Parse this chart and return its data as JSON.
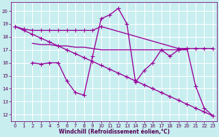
{
  "xlabel": "Windchill (Refroidissement éolien,°C)",
  "background_color": "#c8eef0",
  "grid_color": "#ffffff",
  "line_color": "#990099",
  "xlim": [
    -0.5,
    23.5
  ],
  "ylim": [
    11.5,
    20.7
  ],
  "yticks": [
    12,
    13,
    14,
    15,
    16,
    17,
    18,
    19,
    20
  ],
  "xticks": [
    0,
    1,
    2,
    3,
    4,
    5,
    6,
    7,
    8,
    9,
    10,
    11,
    12,
    13,
    14,
    15,
    16,
    17,
    18,
    19,
    20,
    21,
    22,
    23
  ],
  "line_top_x": [
    0,
    1,
    2,
    3,
    4,
    5,
    6,
    7,
    8,
    9,
    10,
    19,
    20,
    21,
    22,
    23
  ],
  "line_top_y": [
    18.8,
    18.6,
    18.5,
    18.5,
    18.5,
    18.5,
    18.5,
    18.5,
    18.5,
    18.5,
    18.8,
    17.1,
    17.1,
    17.1,
    17.1,
    17.1
  ],
  "line_mid_x": [
    2,
    3,
    4,
    5,
    6,
    7,
    8,
    9,
    10,
    11,
    12,
    13,
    14,
    15,
    16,
    17,
    18,
    19,
    20
  ],
  "line_mid_y": [
    17.5,
    17.4,
    17.4,
    17.3,
    17.3,
    17.2,
    17.2,
    17.1,
    17.0,
    17.0,
    17.0,
    17.0,
    17.0,
    17.0,
    17.0,
    17.0,
    17.0,
    17.0,
    17.0
  ],
  "line_wave_x": [
    2,
    3,
    4,
    5,
    6,
    7,
    8,
    9,
    10,
    11,
    12,
    13,
    14,
    15,
    16,
    17,
    18,
    19,
    20,
    21,
    22,
    23
  ],
  "line_wave_y": [
    16.0,
    15.9,
    16.0,
    16.0,
    14.6,
    13.7,
    13.5,
    16.5,
    19.4,
    19.7,
    20.2,
    19.0,
    14.5,
    15.4,
    16.0,
    17.0,
    16.5,
    17.0,
    17.1,
    14.2,
    12.5,
    11.9
  ],
  "line_diag_x": [
    0,
    1,
    2,
    3,
    4,
    5,
    6,
    7,
    8,
    9,
    10,
    11,
    12,
    13,
    14,
    15,
    16,
    17,
    18,
    19,
    20,
    21,
    22,
    23
  ],
  "line_diag_y": [
    18.8,
    18.5,
    18.2,
    17.9,
    17.6,
    17.3,
    17.0,
    16.7,
    16.4,
    16.1,
    15.8,
    15.5,
    15.2,
    14.9,
    14.6,
    14.3,
    14.0,
    13.7,
    13.4,
    13.1,
    12.8,
    12.5,
    12.2,
    11.9
  ]
}
